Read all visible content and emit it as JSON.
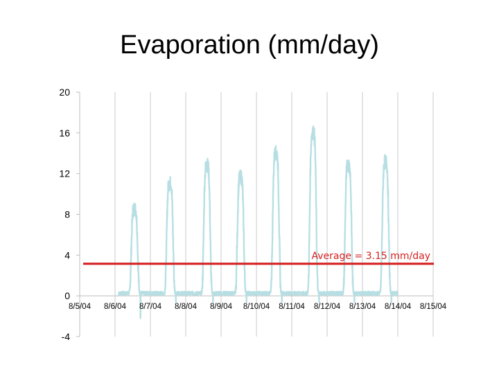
{
  "chart_data": {
    "type": "line",
    "title": "Evaporation (mm/day)",
    "xlabel": "",
    "ylabel": "",
    "ylim": [
      -4,
      20
    ],
    "yticks": [
      "20",
      "16",
      "12",
      "8",
      "4",
      "0",
      "-4"
    ],
    "ytick_values": [
      20,
      16,
      12,
      8,
      4,
      0,
      -4
    ],
    "categories": [
      "8/5/04",
      "8/6/04",
      "8/7/04",
      "8/8/04",
      "8/9/04",
      "8/10/04",
      "8/11/04",
      "8/12/04",
      "8/13/04",
      "8/14/04",
      "8/15/04"
    ],
    "grid": "vertical",
    "series": [
      {
        "color": "#b7dfe3",
        "daily_peaks": [
          {
            "x": 1.55,
            "y": 8.3
          },
          {
            "x": 2.55,
            "y": 10.8
          },
          {
            "x": 3.6,
            "y": 12.6
          },
          {
            "x": 4.55,
            "y": 11.4
          },
          {
            "x": 5.55,
            "y": 13.8
          },
          {
            "x": 6.6,
            "y": 15.8
          },
          {
            "x": 7.6,
            "y": 12.6
          },
          {
            "x": 8.65,
            "y": 12.9
          }
        ]
      }
    ],
    "reference_line": {
      "label": "Average = 3.15 mm/day",
      "value": 3.15,
      "color": "#d62020"
    }
  }
}
